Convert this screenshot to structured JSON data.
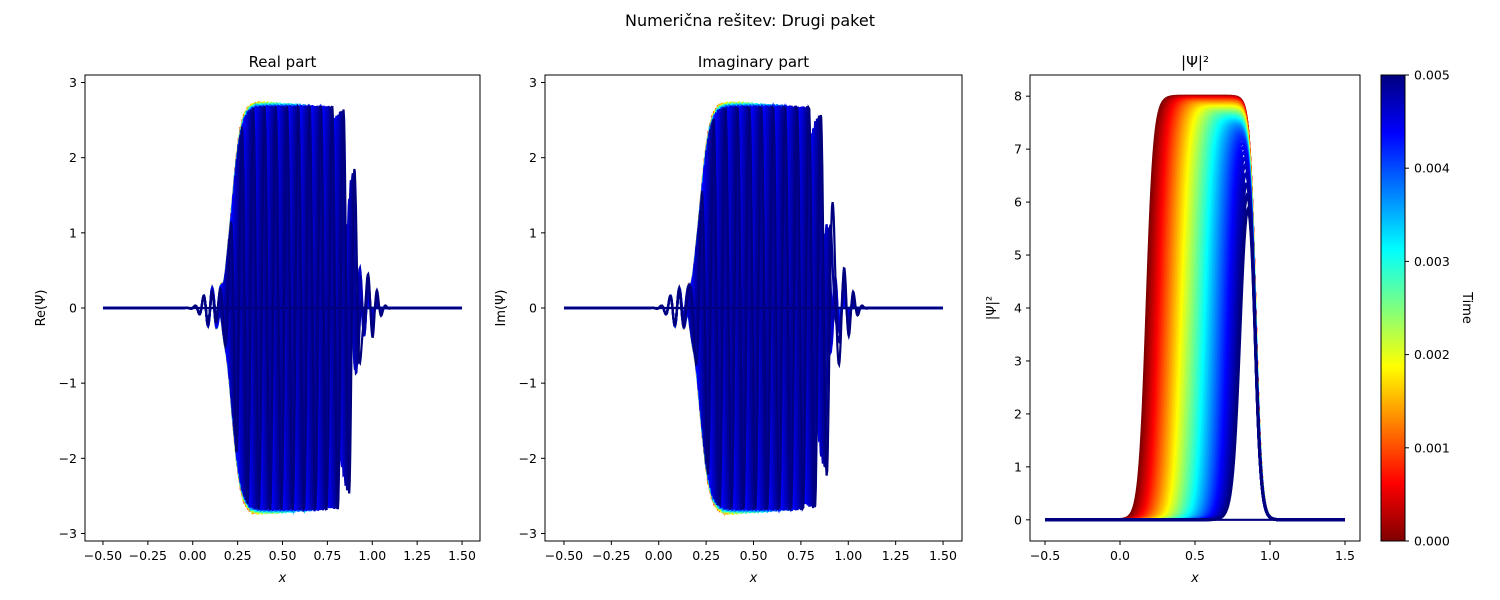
{
  "figure": {
    "suptitle": "Numerična rešitev: Drugi paket"
  },
  "colormap": {
    "name": "jet",
    "stops": [
      "#00007f",
      "#0000ff",
      "#007fff",
      "#00ffff",
      "#7fff7f",
      "#ffff00",
      "#ff7f00",
      "#ff0000",
      "#7f0000"
    ]
  },
  "chart_data": [
    {
      "type": "line",
      "title": "Real part",
      "xlabel": "x",
      "ylabel": "Re(Ψ)",
      "xlim": [
        -0.6,
        1.6
      ],
      "ylim": [
        -3.1,
        3.1
      ],
      "xticks": [
        -0.5,
        -0.25,
        0.0,
        0.25,
        0.5,
        0.75,
        1.0,
        1.25,
        1.5
      ],
      "xtick_labels": [
        "−0.50",
        "−0.25",
        "0.00",
        "0.25",
        "0.50",
        "0.75",
        "1.00",
        "1.25",
        "1.50"
      ],
      "yticks": [
        -3,
        -2,
        -1,
        0,
        1,
        2,
        3
      ],
      "ytick_labels": [
        "−3",
        "−2",
        "−1",
        "0",
        "1",
        "2",
        "3"
      ],
      "x_range": [
        -0.5,
        1.5
      ],
      "packet": {
        "amplitude": 2.8,
        "center_start": 0.5,
        "center_end": 0.6,
        "half_width_start": 0.25,
        "half_width_end": 0.32,
        "wave_number": 100
      },
      "time_range": [
        0.0,
        0.005
      ]
    },
    {
      "type": "line",
      "title": "Imaginary part",
      "xlabel": "x",
      "ylabel": "Im(Ψ)",
      "xlim": [
        -0.6,
        1.6
      ],
      "ylim": [
        -3.1,
        3.1
      ],
      "xticks": [
        -0.5,
        -0.25,
        0.0,
        0.25,
        0.5,
        0.75,
        1.0,
        1.25,
        1.5
      ],
      "xtick_labels": [
        "−0.50",
        "−0.25",
        "0.00",
        "0.25",
        "0.50",
        "0.75",
        "1.00",
        "1.25",
        "1.50"
      ],
      "yticks": [
        -3,
        -2,
        -1,
        0,
        1,
        2,
        3
      ],
      "ytick_labels": [
        "−3",
        "−2",
        "−1",
        "0",
        "1",
        "2",
        "3"
      ],
      "x_range": [
        -0.5,
        1.5
      ],
      "packet": {
        "amplitude": 2.8,
        "center_start": 0.5,
        "center_end": 0.6,
        "half_width_start": 0.25,
        "half_width_end": 0.32,
        "wave_number": 100
      },
      "time_range": [
        0.0,
        0.005
      ]
    },
    {
      "type": "area",
      "title": "|Ψ|²",
      "xlabel": "x",
      "ylabel": "|Ψ|²",
      "xlim": [
        -0.6,
        1.6
      ],
      "ylim": [
        -0.4,
        8.4
      ],
      "xticks": [
        -0.5,
        0.0,
        0.5,
        1.0,
        1.5
      ],
      "xtick_labels": [
        "−0.5",
        "0.0",
        "0.5",
        "1.0",
        "1.5"
      ],
      "yticks": [
        0,
        1,
        2,
        3,
        4,
        5,
        6,
        7,
        8
      ],
      "ytick_labels": [
        "0",
        "1",
        "2",
        "3",
        "4",
        "5",
        "6",
        "7",
        "8"
      ],
      "x_range": [
        -0.5,
        1.5
      ],
      "plateau": {
        "left_edge_start": 0.25,
        "left_edge_end": 0.87,
        "right_edge": 0.9,
        "peak_start": 8.0,
        "peak_end": 7.2
      },
      "time_range": [
        0.0,
        0.005
      ]
    }
  ],
  "colorbar": {
    "label": "Time",
    "range": [
      0.0,
      0.005
    ],
    "ticks": [
      0.0,
      0.001,
      0.002,
      0.003,
      0.004,
      0.005
    ],
    "tick_labels": [
      "0.000",
      "0.001",
      "0.002",
      "0.003",
      "0.004",
      "0.005"
    ]
  }
}
